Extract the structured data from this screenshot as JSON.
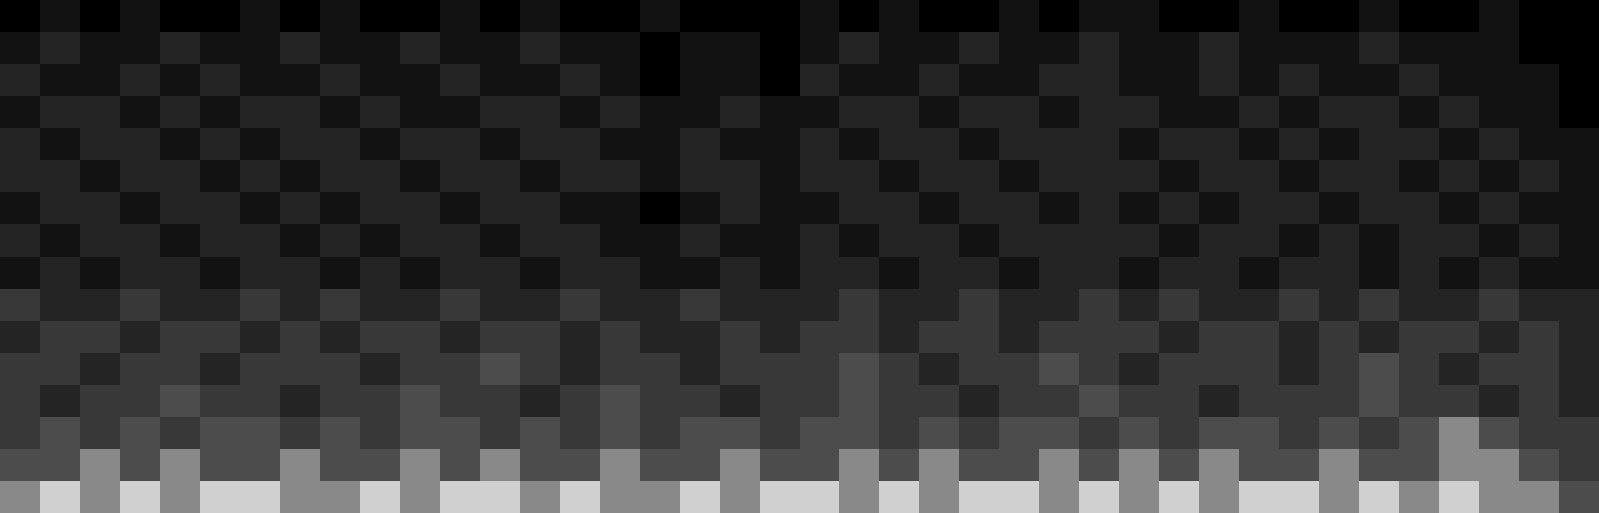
{
  "chart_data": {
    "type": "heatmap",
    "tick_labels": false,
    "grid": false,
    "z": [
      [
        1,
        2,
        1,
        2,
        1,
        1,
        2,
        1,
        2,
        1,
        1,
        2,
        1,
        2,
        1,
        1,
        2,
        1,
        1,
        1,
        2,
        1,
        2,
        1,
        1,
        2,
        1,
        2,
        2,
        1,
        1,
        2,
        1,
        1,
        2,
        1,
        1,
        2,
        1,
        1
      ],
      [
        2,
        3,
        2,
        2,
        3,
        2,
        2,
        3,
        2,
        2,
        3,
        2,
        2,
        3,
        2,
        2,
        1,
        2,
        2,
        1,
        2,
        3,
        2,
        2,
        3,
        2,
        2,
        3,
        2,
        2,
        3,
        2,
        2,
        2,
        3,
        2,
        2,
        2,
        1,
        1
      ],
      [
        3,
        2,
        2,
        3,
        2,
        3,
        2,
        2,
        3,
        2,
        2,
        3,
        2,
        2,
        3,
        2,
        1,
        2,
        2,
        1,
        3,
        2,
        2,
        3,
        2,
        2,
        3,
        3,
        2,
        2,
        3,
        2,
        3,
        2,
        2,
        3,
        2,
        2,
        2,
        1
      ],
      [
        2,
        3,
        3,
        2,
        3,
        2,
        3,
        3,
        2,
        3,
        2,
        2,
        3,
        3,
        2,
        3,
        2,
        2,
        3,
        2,
        2,
        3,
        3,
        2,
        3,
        3,
        2,
        3,
        3,
        2,
        2,
        3,
        2,
        3,
        3,
        2,
        3,
        2,
        2,
        1
      ],
      [
        3,
        2,
        3,
        3,
        2,
        3,
        2,
        3,
        3,
        2,
        3,
        3,
        2,
        3,
        3,
        2,
        2,
        3,
        2,
        2,
        3,
        2,
        3,
        3,
        2,
        3,
        3,
        3,
        2,
        3,
        3,
        2,
        3,
        2,
        3,
        3,
        2,
        3,
        2,
        2
      ],
      [
        3,
        3,
        2,
        3,
        3,
        2,
        3,
        2,
        3,
        3,
        2,
        3,
        3,
        2,
        3,
        3,
        2,
        3,
        3,
        2,
        3,
        3,
        2,
        3,
        3,
        2,
        3,
        3,
        3,
        2,
        3,
        3,
        2,
        3,
        3,
        2,
        3,
        2,
        3,
        2
      ],
      [
        2,
        3,
        3,
        2,
        3,
        3,
        2,
        3,
        2,
        3,
        3,
        2,
        3,
        3,
        2,
        2,
        1,
        2,
        3,
        2,
        2,
        3,
        3,
        2,
        3,
        3,
        2,
        3,
        2,
        3,
        2,
        3,
        3,
        2,
        3,
        3,
        2,
        3,
        2,
        2
      ],
      [
        3,
        2,
        3,
        3,
        2,
        3,
        3,
        2,
        3,
        2,
        3,
        3,
        2,
        3,
        3,
        2,
        2,
        3,
        2,
        2,
        3,
        2,
        3,
        3,
        2,
        3,
        3,
        3,
        3,
        2,
        3,
        3,
        2,
        3,
        2,
        3,
        3,
        2,
        3,
        2
      ],
      [
        2,
        3,
        2,
        3,
        3,
        2,
        3,
        3,
        2,
        3,
        2,
        3,
        3,
        2,
        3,
        3,
        2,
        2,
        3,
        2,
        3,
        3,
        2,
        3,
        3,
        2,
        3,
        3,
        2,
        3,
        3,
        2,
        3,
        3,
        2,
        3,
        2,
        3,
        2,
        2
      ],
      [
        4,
        3,
        3,
        4,
        3,
        3,
        4,
        3,
        4,
        3,
        3,
        4,
        3,
        3,
        4,
        3,
        3,
        4,
        3,
        3,
        3,
        4,
        3,
        3,
        4,
        3,
        3,
        4,
        3,
        4,
        3,
        3,
        4,
        3,
        4,
        3,
        3,
        4,
        3,
        3
      ],
      [
        3,
        4,
        4,
        3,
        4,
        4,
        3,
        4,
        3,
        4,
        4,
        3,
        4,
        4,
        3,
        4,
        3,
        3,
        4,
        3,
        4,
        4,
        3,
        4,
        4,
        3,
        4,
        4,
        4,
        3,
        4,
        4,
        3,
        4,
        3,
        4,
        4,
        3,
        4,
        3
      ],
      [
        4,
        4,
        3,
        4,
        4,
        3,
        4,
        4,
        4,
        3,
        4,
        4,
        5,
        4,
        3,
        4,
        4,
        3,
        4,
        4,
        4,
        5,
        4,
        3,
        4,
        4,
        5,
        4,
        3,
        4,
        4,
        4,
        3,
        4,
        5,
        4,
        3,
        4,
        4,
        3
      ],
      [
        4,
        3,
        4,
        4,
        5,
        4,
        4,
        3,
        4,
        4,
        5,
        4,
        4,
        3,
        4,
        5,
        4,
        4,
        3,
        4,
        4,
        5,
        4,
        4,
        3,
        4,
        4,
        5,
        4,
        4,
        3,
        4,
        4,
        4,
        5,
        4,
        4,
        3,
        4,
        3
      ],
      [
        4,
        5,
        4,
        5,
        4,
        5,
        5,
        4,
        5,
        4,
        5,
        5,
        4,
        5,
        4,
        5,
        4,
        5,
        5,
        4,
        5,
        5,
        4,
        5,
        4,
        5,
        5,
        4,
        5,
        4,
        5,
        5,
        4,
        5,
        4,
        5,
        6,
        5,
        4,
        4
      ],
      [
        5,
        5,
        6,
        5,
        6,
        5,
        5,
        6,
        5,
        5,
        6,
        5,
        6,
        5,
        5,
        6,
        5,
        5,
        6,
        5,
        5,
        6,
        5,
        6,
        5,
        5,
        6,
        5,
        6,
        5,
        6,
        5,
        5,
        6,
        5,
        5,
        6,
        6,
        5,
        4
      ],
      [
        6,
        7,
        6,
        7,
        6,
        7,
        7,
        6,
        6,
        7,
        6,
        7,
        7,
        6,
        7,
        6,
        6,
        7,
        6,
        7,
        7,
        6,
        7,
        6,
        7,
        7,
        6,
        7,
        6,
        7,
        6,
        7,
        7,
        6,
        7,
        6,
        7,
        6,
        6,
        5
      ]
    ]
  }
}
